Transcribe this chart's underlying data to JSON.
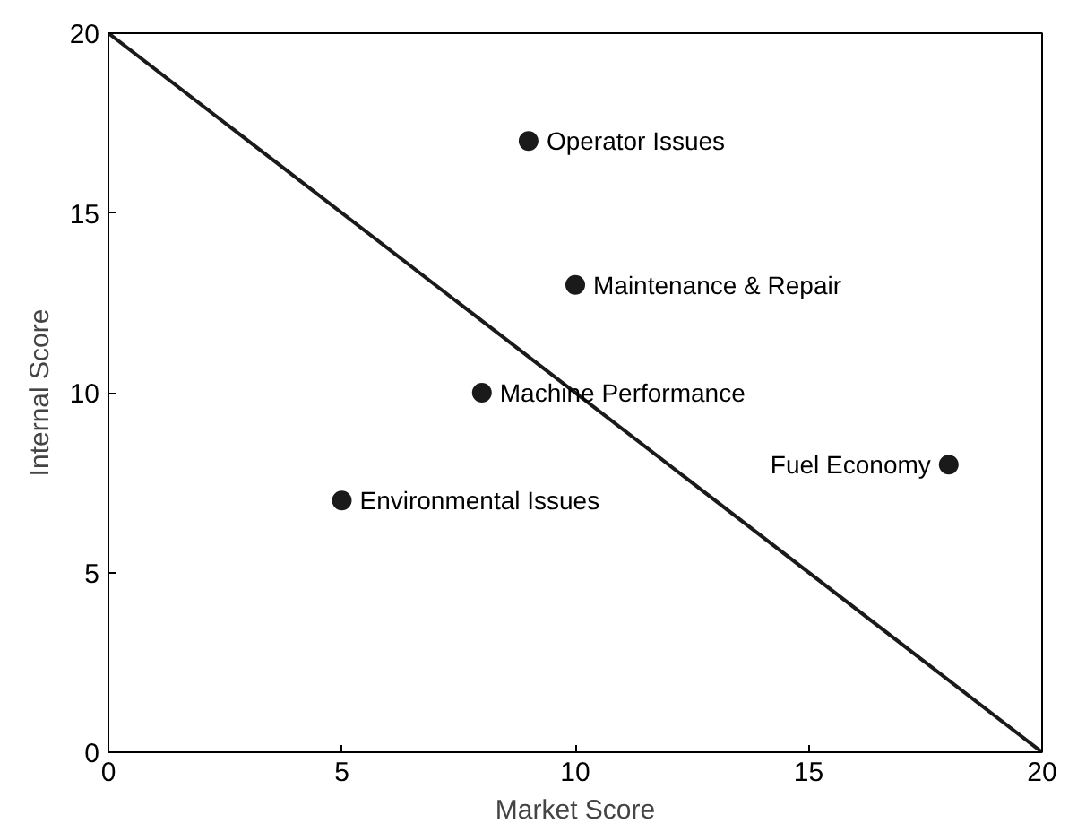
{
  "chart_data": {
    "type": "scatter",
    "xlabel": "Market Score",
    "ylabel": "Internal Score",
    "xlim": [
      0,
      20
    ],
    "ylim": [
      0,
      20
    ],
    "xticks": [
      0,
      5,
      10,
      15,
      20
    ],
    "yticks": [
      0,
      5,
      10,
      15,
      20
    ],
    "grid": false,
    "marker": "circle",
    "series": [
      {
        "color": "#1a1a1a",
        "x": [
          9,
          10,
          8,
          5,
          18
        ],
        "values": [
          17,
          13,
          10,
          7,
          8
        ]
      },
      {
        "type": "line",
        "color": "#1a1a1a",
        "x": [
          0,
          20
        ],
        "values": [
          20,
          0
        ],
        "line_style": "solid",
        "marker": "none"
      }
    ],
    "annotations": [
      {
        "text": "Operator Issues",
        "x": 9,
        "y": 17
      },
      {
        "text": "Maintenance & Repair",
        "x": 10,
        "y": 13
      },
      {
        "text": "Machine Performance",
        "x": 8,
        "y": 10
      },
      {
        "text": "Environmental Issues",
        "x": 5,
        "y": 7
      },
      {
        "text": "Fuel Economy",
        "x": 18,
        "y": 8
      }
    ]
  }
}
